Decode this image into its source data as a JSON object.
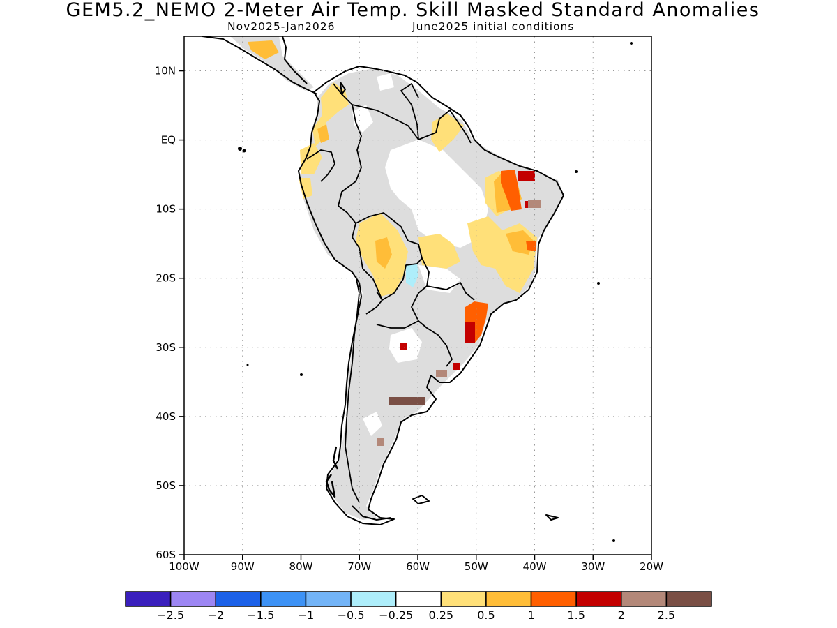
{
  "header": {
    "title": "GEM5.2_NEMO 2-Meter Air Temp. Skill Masked Standard Anomalies",
    "valid_period": "Nov2025-Jan2026",
    "initial_conditions": "June2025 initial conditions"
  },
  "map": {
    "region": "South America",
    "lat_range": [
      -60,
      15
    ],
    "lon_range": [
      -100,
      -20
    ],
    "lat_ticks": [
      {
        "value": 10,
        "label": "10N"
      },
      {
        "value": 0,
        "label": "EQ"
      },
      {
        "value": -10,
        "label": "10S"
      },
      {
        "value": -20,
        "label": "20S"
      },
      {
        "value": -30,
        "label": "30S"
      },
      {
        "value": -40,
        "label": "40S"
      },
      {
        "value": -50,
        "label": "50S"
      },
      {
        "value": -60,
        "label": "60S"
      }
    ],
    "lon_ticks": [
      {
        "value": -100,
        "label": "100W"
      },
      {
        "value": -90,
        "label": "90W"
      },
      {
        "value": -80,
        "label": "80W"
      },
      {
        "value": -70,
        "label": "70W"
      },
      {
        "value": -60,
        "label": "60W"
      },
      {
        "value": -50,
        "label": "50W"
      },
      {
        "value": -40,
        "label": "40W"
      },
      {
        "value": -30,
        "label": "30W"
      },
      {
        "value": -20,
        "label": "20W"
      }
    ],
    "gridlines": "dotted",
    "masked_color": "#dddddd",
    "coastline_color": "#000000",
    "anomaly_regions": [
      {
        "lat": -7.5,
        "lon": -42,
        "category": "1 to 1.5",
        "color": "#ff5f00"
      },
      {
        "lat": -5,
        "lon": -40.5,
        "category": "1.5 to 2",
        "color": "#c30000"
      },
      {
        "lat": -8.5,
        "lon": -40,
        "category": "2 to 2.5",
        "color": "#b38879"
      },
      {
        "lat": -26,
        "lon": -51,
        "category": "1 to 1.5",
        "color": "#ff5f00"
      },
      {
        "lat": -36.5,
        "lon": -63,
        "category": "> 2.5",
        "color": "#7a4f45"
      },
      {
        "lat": -28.5,
        "lon": -62.5,
        "category": "1.5 to 2",
        "color": "#c30000"
      },
      {
        "lat": -19,
        "lon": -60,
        "category": "-0.5 to -0.25",
        "color": "#aeeefb"
      }
    ]
  },
  "colorbar": {
    "colors": [
      "#3a1fbd",
      "#9d86f3",
      "#1c61e8",
      "#3d92f5",
      "#73b4f7",
      "#aeeefb",
      "#ffffff",
      "#ffe079",
      "#ffbd38",
      "#ff5f00",
      "#c30000",
      "#b38879",
      "#7a4f45"
    ],
    "labels": [
      "-2.5",
      "-2",
      "-1.5",
      "-1",
      "-0.5",
      "-0.25",
      "0.25",
      "0.5",
      "1",
      "1.5",
      "2",
      "2.5"
    ]
  }
}
